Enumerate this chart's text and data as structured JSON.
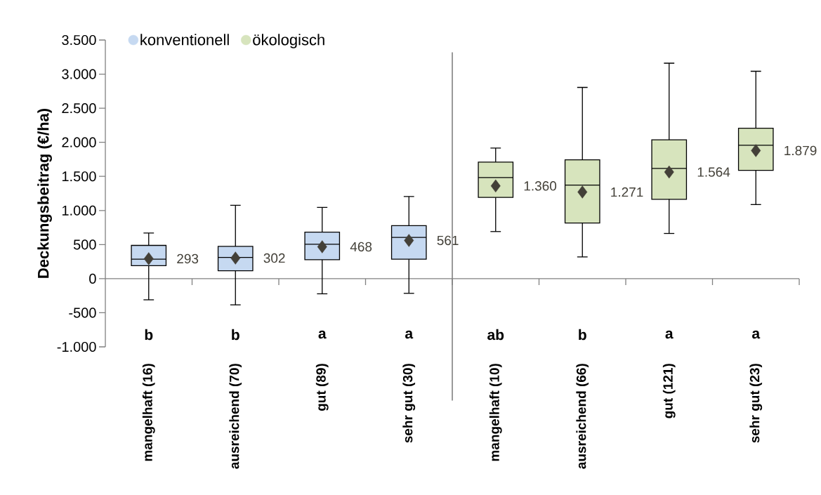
{
  "chart_data": {
    "type": "box",
    "ylabel": "Deckungsbeitrag (€/ha)",
    "categories": [
      "mangelhaft (16)",
      "ausreichend (70)",
      "gut (89)",
      "sehr gut (30)",
      "mangelhaft (10)",
      "ausreichend (66)",
      "gut (121)",
      "sehr gut (23)"
    ],
    "series": [
      {
        "name": "konventionell",
        "color": "#c6d9f1",
        "boxes": [
          {
            "low": -310,
            "q1": 190,
            "median": 285,
            "q3": 488,
            "high": 670,
            "mean": 293
          },
          {
            "low": -384,
            "q1": 116,
            "median": 311,
            "q3": 473,
            "high": 1076,
            "mean": 302
          },
          {
            "low": -222,
            "q1": 278,
            "median": 505,
            "q3": 683,
            "high": 1046,
            "mean": 468
          },
          {
            "low": -215,
            "q1": 285,
            "median": 605,
            "q3": 778,
            "high": 1204,
            "mean": 561
          },
          null,
          null,
          null,
          null
        ]
      },
      {
        "name": "ökologisch",
        "color": "#d7e4bd",
        "boxes": [
          null,
          null,
          null,
          null,
          {
            "low": 691,
            "q1": 1192,
            "median": 1484,
            "q3": 1710,
            "high": 1915,
            "mean": 1360
          },
          {
            "low": 319,
            "q1": 816,
            "median": 1373,
            "q3": 1742,
            "high": 2805,
            "mean": 1271
          },
          {
            "low": 663,
            "q1": 1164,
            "median": 1616,
            "q3": 2037,
            "high": 3160,
            "mean": 1564
          },
          {
            "low": 1087,
            "q1": 1588,
            "median": 1957,
            "q3": 2207,
            "high": 3042,
            "mean": 1879
          }
        ]
      }
    ],
    "ylim": [
      -1000,
      3500
    ],
    "yticks": [
      {
        "value": -1000,
        "label": "-1.000"
      },
      -500,
      0,
      500,
      {
        "value": 1000,
        "label": "1.000"
      },
      {
        "value": 1500,
        "label": "1.500"
      },
      {
        "value": 2000,
        "label": "2.000"
      },
      {
        "value": 2500,
        "label": "2.500"
      },
      {
        "value": 3000,
        "label": "3.000"
      },
      {
        "value": 3500,
        "label": "3.500"
      }
    ],
    "annotations": [
      {
        "text": "293",
        "x": "mangelhaft (16)",
        "y": 293
      },
      {
        "text": "302",
        "x": "ausreichend (70)",
        "y": 302
      },
      {
        "text": "468",
        "x": "gut (89)",
        "y": 468
      },
      {
        "text": "561",
        "x": "sehr gut (30)",
        "y": 561
      },
      {
        "text": "1.360",
        "x": "mangelhaft (10)",
        "y": 1360
      },
      {
        "text": "1.271",
        "x": "ausreichend (66)",
        "y": 1271
      },
      {
        "text": "1.564",
        "x": "gut (121)",
        "y": 1564
      },
      {
        "text": "1.879",
        "x": "sehr gut (23)",
        "y": 1879
      },
      "b",
      "b",
      "a",
      "a",
      "ab",
      "b",
      "a",
      "a"
    ],
    "legend": "top left"
  }
}
